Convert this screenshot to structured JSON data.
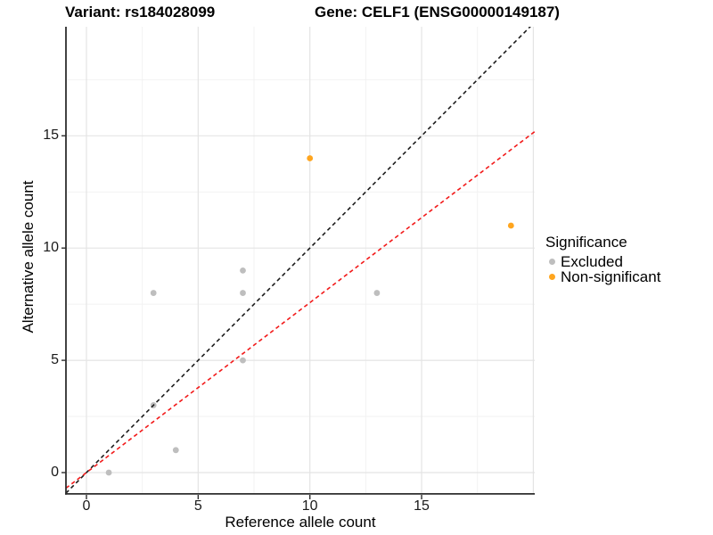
{
  "title": {
    "variant": "Variant: rs184028099",
    "gene": "Gene: CELF1 (ENSG00000149187)"
  },
  "axes": {
    "x": {
      "label": "Reference allele count",
      "ticks": [
        0,
        5,
        10,
        15
      ]
    },
    "y": {
      "label": "Alternative allele count",
      "ticks": [
        0,
        5,
        10,
        15
      ]
    }
  },
  "legend": {
    "title": "Significance",
    "items": [
      {
        "label": "Excluded",
        "color": "#BEBEBE"
      },
      {
        "label": "Non-significant",
        "color": "#FFA51E"
      }
    ]
  },
  "chart_data": {
    "type": "scatter",
    "title": "Variant: rs184028099 / Gene: CELF1 (ENSG00000149187)",
    "xlabel": "Reference allele count",
    "ylabel": "Alternative allele count",
    "xlim": [
      -0.92,
      20.06
    ],
    "ylim": [
      -0.91,
      19.86
    ],
    "x_ticks": [
      0,
      5,
      10,
      15
    ],
    "y_ticks": [
      0,
      5,
      10,
      15
    ],
    "gridlines": {
      "x_major": [
        0,
        5,
        10,
        15,
        20
      ],
      "x_minor": [
        2.5,
        7.5,
        12.5,
        17.5
      ],
      "y_major": [
        0,
        5,
        10,
        15
      ],
      "y_minor": [
        2.5,
        7.5,
        12.5,
        17.5
      ]
    },
    "series": [
      {
        "name": "Excluded",
        "color": "#BEBEBE",
        "points": [
          [
            1,
            0
          ],
          [
            3,
            3
          ],
          [
            3,
            8
          ],
          [
            4,
            1
          ],
          [
            7,
            5
          ],
          [
            7,
            8
          ],
          [
            7,
            9
          ],
          [
            13,
            8
          ]
        ]
      },
      {
        "name": "Non-significant",
        "color": "#FFA51E",
        "points": [
          [
            10,
            14
          ],
          [
            19,
            11
          ]
        ]
      }
    ],
    "reference_lines": [
      {
        "name": "identity-line",
        "slope": 1,
        "intercept": 0,
        "color": "#1C1C1C",
        "dashed": true
      },
      {
        "name": "expected-ratio-line",
        "slope": 0.757,
        "intercept": 0,
        "color": "#F21A1A",
        "dashed": true
      }
    ],
    "legend_title": "Significance",
    "legend_position": "right",
    "grid": true
  }
}
